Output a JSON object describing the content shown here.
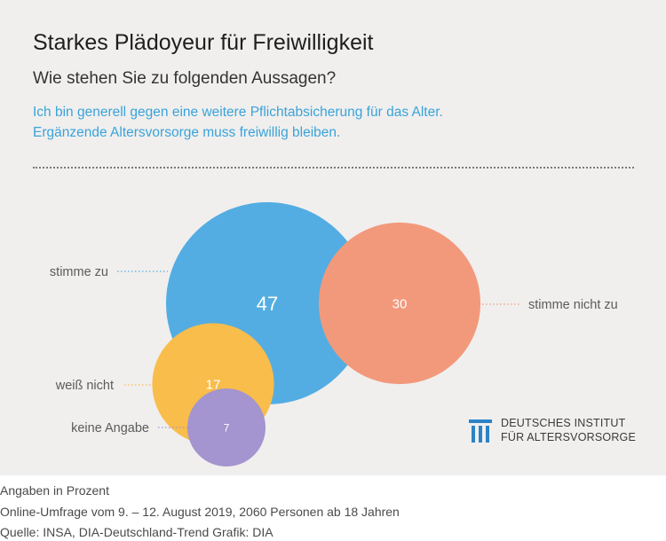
{
  "header": {
    "title": "Starkes Plädoyeur für Freiwilligkeit",
    "question": "Wie stehen Sie zu folgenden Aussagen?",
    "statement_1": "Ich bin generell gegen eine weitere Pflichtabsicherung für das Alter.",
    "statement_2": "Ergänzende Altersvorsorge muss freiwillig bleiben."
  },
  "chart_data": {
    "type": "bubble",
    "unit": "Prozent",
    "categories": [
      "stimme zu",
      "stimme nicht zu",
      "weiß nicht",
      "keine Angabe"
    ],
    "values": [
      47,
      30,
      17,
      7
    ],
    "colors": [
      "#53ade2",
      "#f3997b",
      "#f8bd4b",
      "#a494cf"
    ]
  },
  "logo": {
    "line_1": "DEUTSCHES INSTITUT",
    "line_2": "FÜR ALTERSVORSORGE",
    "color": "#2b83c6"
  },
  "footer": {
    "line_1": "Angaben in Prozent",
    "line_2": "Online-Umfrage vom 9. – 12. August 2019, 2060 Personen ab 18 Jahren",
    "line_3": "Quelle: INSA, DIA-Deutschland-Trend  Grafik: DIA"
  }
}
